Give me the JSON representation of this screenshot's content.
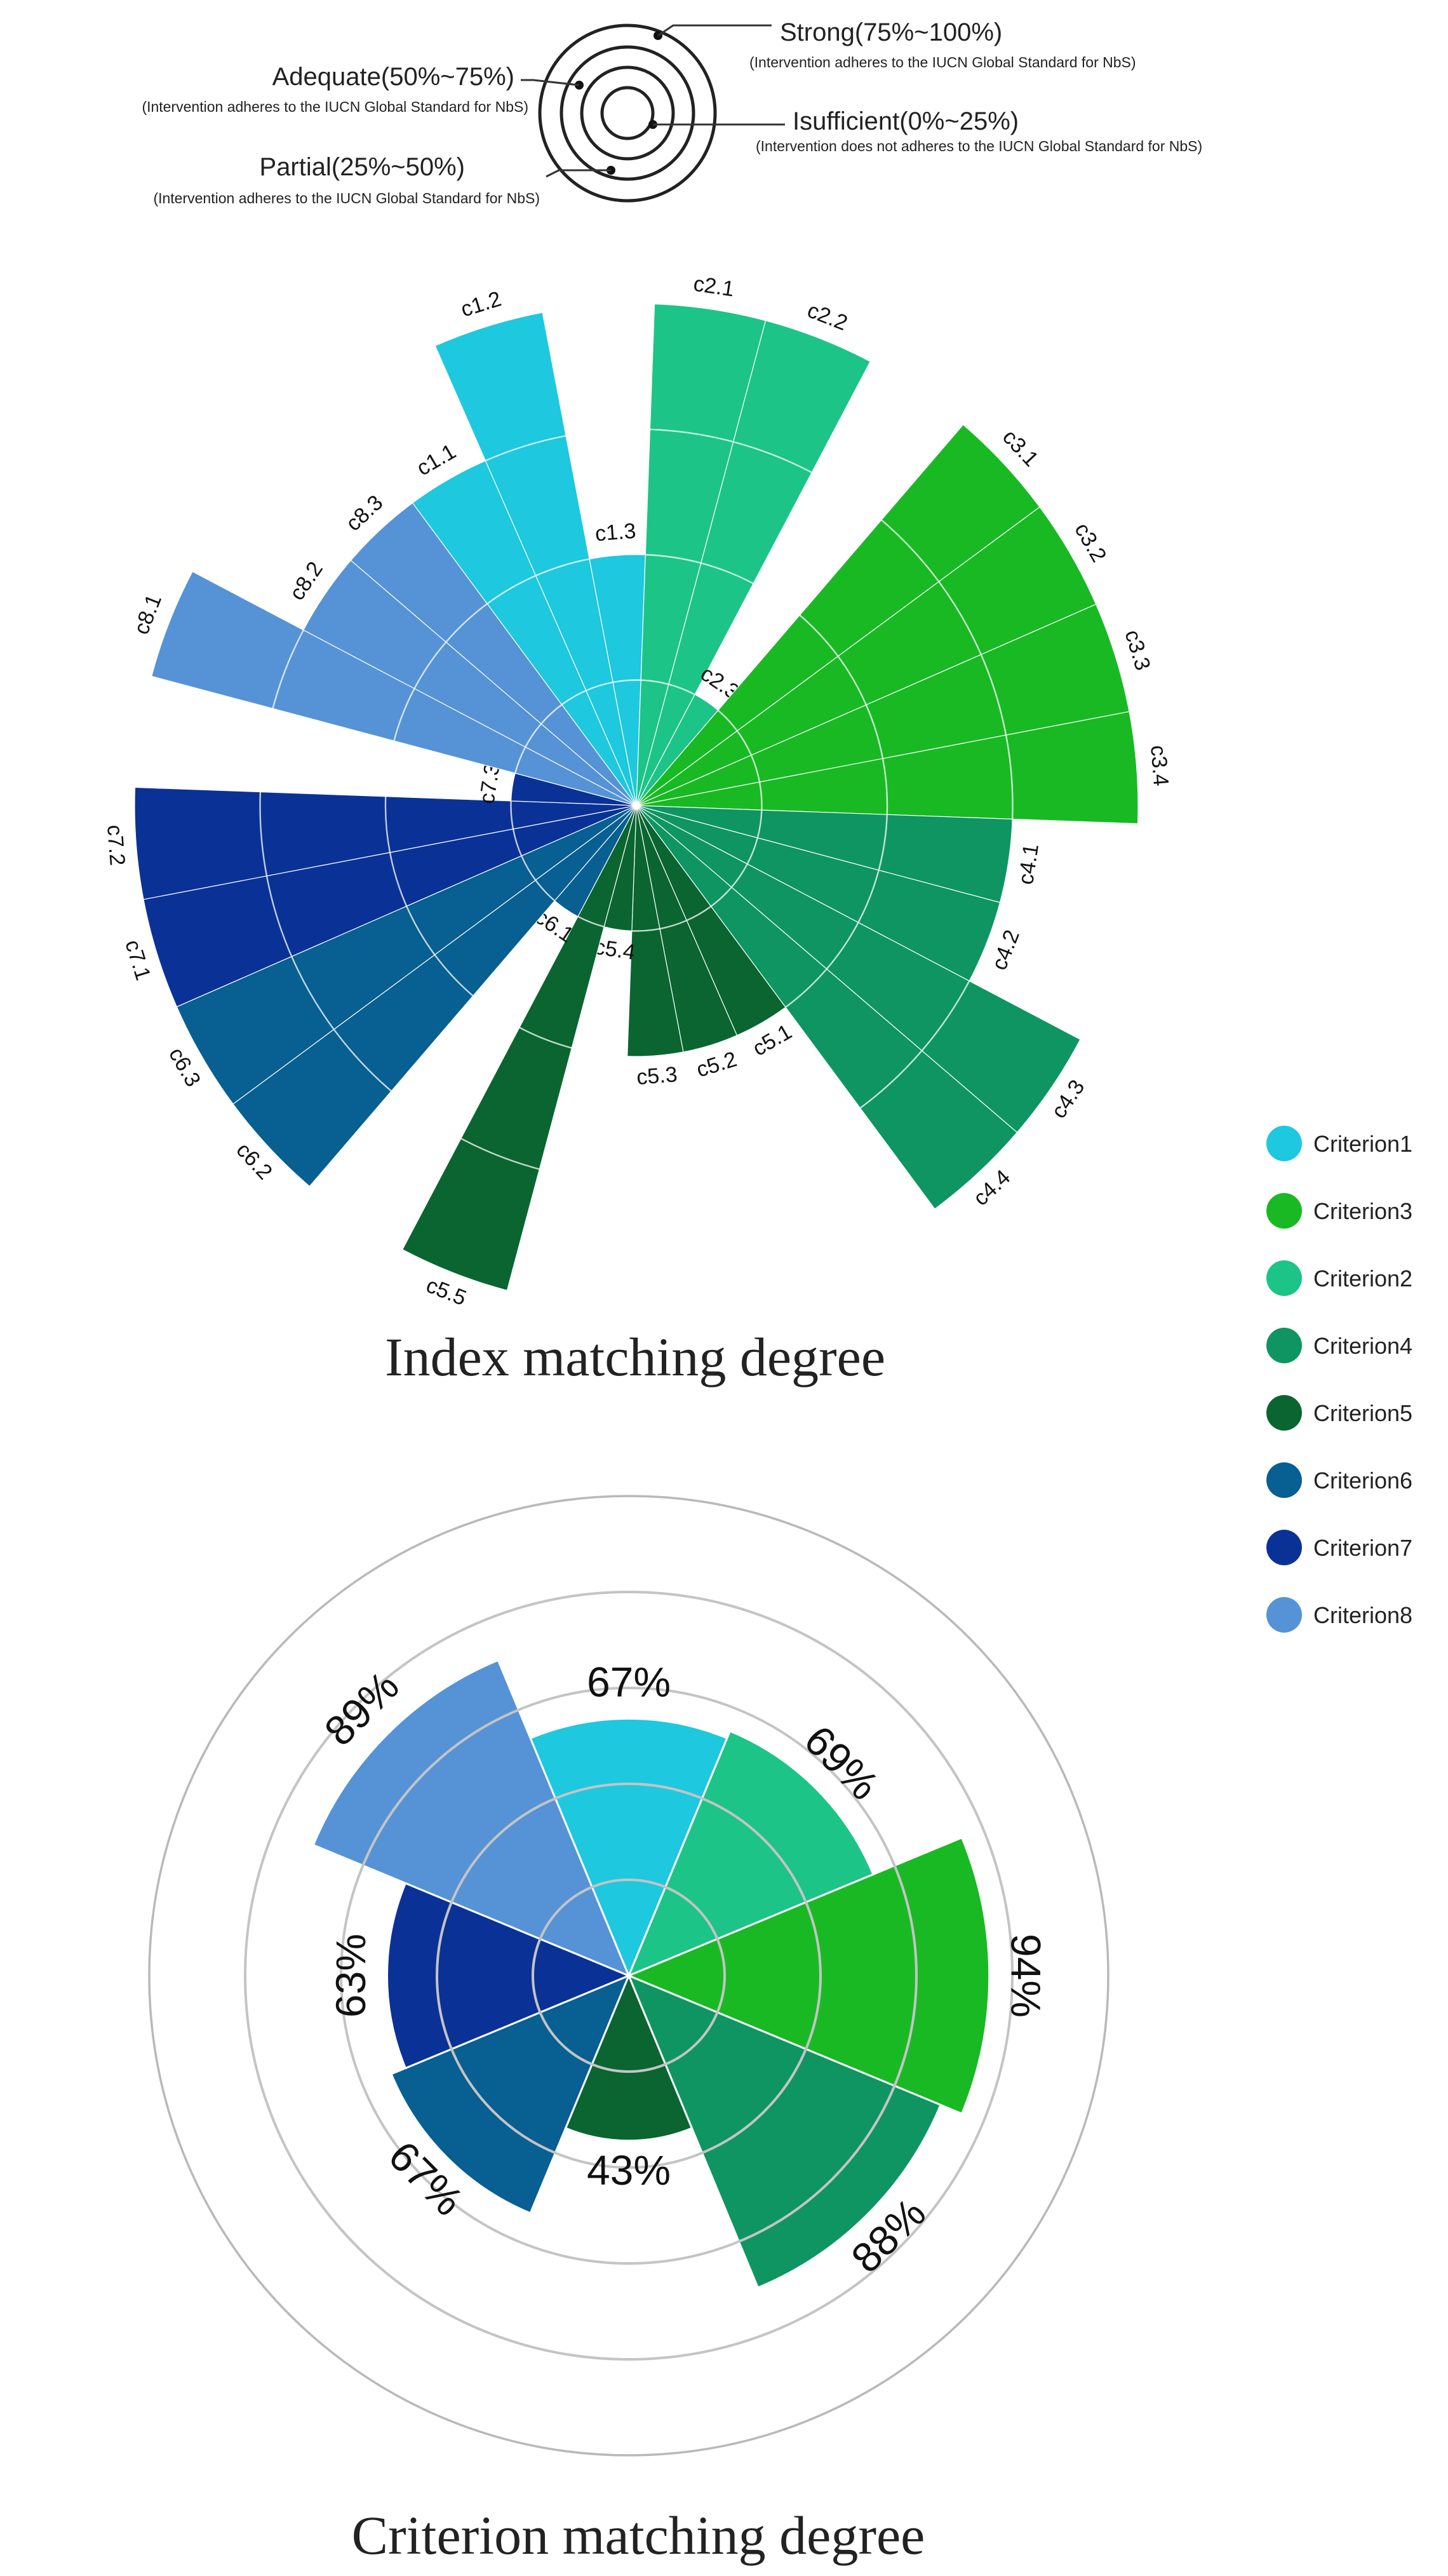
{
  "level_key": {
    "levels": [
      {
        "title": "Strong(75%~100%)",
        "note": "(Intervention adheres to the IUCN Global Standard for NbS)"
      },
      {
        "title": "Adequate(50%~75%)",
        "note": "(Intervention adheres to the IUCN Global Standard for NbS)"
      },
      {
        "title": "Partial(25%~50%)",
        "note": "(Intervention adheres to the IUCN Global Standard for NbS)"
      },
      {
        "title": "Isufficient(0%~25%)",
        "note": "(Intervention does not adheres to the IUCN Global Standard for NbS)"
      }
    ]
  },
  "legend": {
    "items": [
      {
        "label": "Criterion1",
        "color": "#1ec8de"
      },
      {
        "label": "Criterion3",
        "color": "#19b924"
      },
      {
        "label": "Criterion2",
        "color": "#1dc487"
      },
      {
        "label": "Criterion4",
        "color": "#0e9562"
      },
      {
        "label": "Criterion5",
        "color": "#0a6530"
      },
      {
        "label": "Criterion6",
        "color": "#075f92"
      },
      {
        "label": "Criterion7",
        "color": "#0a3296"
      },
      {
        "label": "Criterion8",
        "color": "#5593d6"
      }
    ]
  },
  "chart_data": [
    {
      "type": "polar-bar",
      "title": "Index matching degree",
      "rmax": 1.0,
      "ring_count": 4,
      "categories": [
        "c1.1",
        "c1.2",
        "c1.3",
        "c2.1",
        "c2.2",
        "c2.3",
        "c3.1",
        "c3.2",
        "c3.3",
        "c3.4",
        "c4.1",
        "c4.2",
        "c4.3",
        "c4.4",
        "c5.1",
        "c5.2",
        "c5.3",
        "c5.4",
        "c5.5",
        "c6.1",
        "c6.2",
        "c6.3",
        "c7.1",
        "c7.2",
        "c7.3",
        "c8.1",
        "c8.2",
        "c8.3"
      ],
      "groups": [
        "Criterion1",
        "Criterion1",
        "Criterion1",
        "Criterion2",
        "Criterion2",
        "Criterion2",
        "Criterion3",
        "Criterion3",
        "Criterion3",
        "Criterion3",
        "Criterion4",
        "Criterion4",
        "Criterion4",
        "Criterion4",
        "Criterion5",
        "Criterion5",
        "Criterion5",
        "Criterion5",
        "Criterion5",
        "Criterion6",
        "Criterion6",
        "Criterion6",
        "Criterion7",
        "Criterion7",
        "Criterion7",
        "Criterion8",
        "Criterion8",
        "Criterion8"
      ],
      "values": [
        0.75,
        1.0,
        0.5,
        1.0,
        1.0,
        0.25,
        1.0,
        1.0,
        1.0,
        1.0,
        0.75,
        0.75,
        1.0,
        1.0,
        0.5,
        0.5,
        0.5,
        0.25,
        1.0,
        0.25,
        1.0,
        1.0,
        1.0,
        1.0,
        0.25,
        1.0,
        0.75,
        0.75
      ]
    },
    {
      "type": "polar-bar",
      "title": "Criterion matching degree",
      "rmax": 1.25,
      "ring_count": 5,
      "categories": [
        "Criterion1",
        "Criterion2",
        "Criterion3",
        "Criterion4",
        "Criterion5",
        "Criterion6",
        "Criterion7",
        "Criterion8"
      ],
      "values": [
        0.67,
        0.69,
        0.94,
        0.88,
        0.43,
        0.67,
        0.63,
        0.89
      ],
      "data_labels": [
        "67%",
        "69%",
        "94%",
        "88%",
        "43%",
        "67%",
        "63%",
        "89%"
      ]
    }
  ]
}
